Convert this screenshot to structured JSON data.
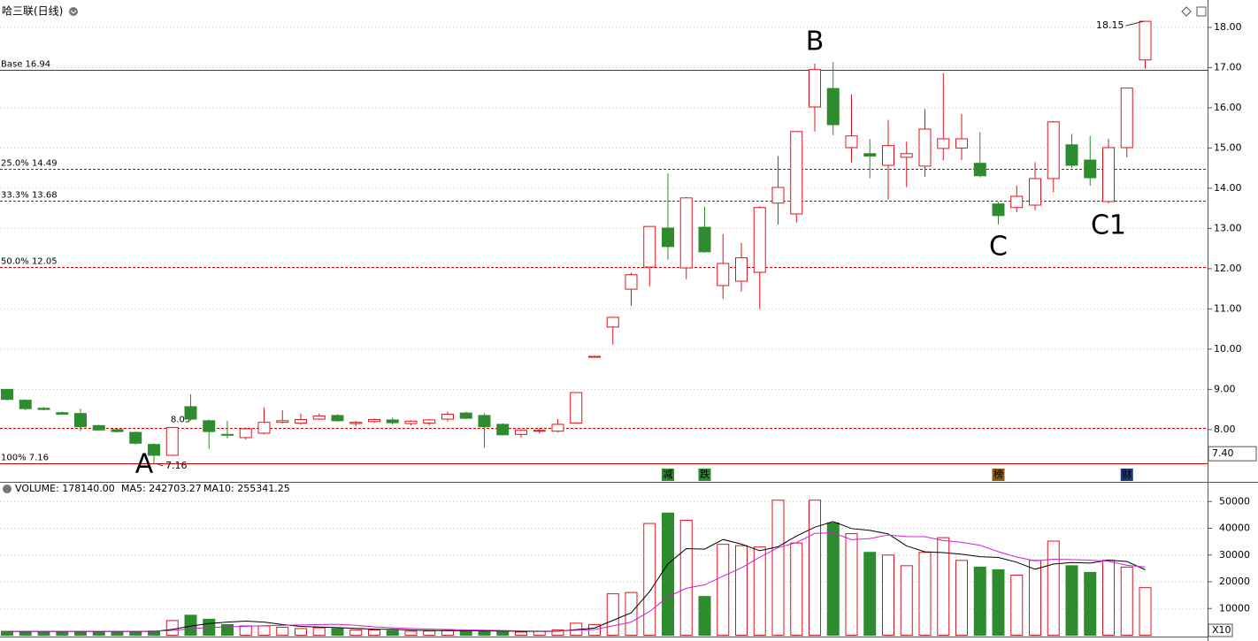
{
  "chart_data": [
    {
      "type": "candlestick",
      "title": "哈三联(日线)",
      "up_color": "#e0141e",
      "down_color": "#2e8b2e",
      "level_color": "#cc0000",
      "grid": true,
      "open": [
        9.0,
        8.73,
        8.53,
        8.42,
        8.4,
        8.1,
        8.0,
        7.93,
        7.63,
        7.36,
        8.57,
        8.22,
        7.88,
        7.8,
        7.91,
        8.18,
        8.16,
        8.26,
        8.35,
        8.15,
        8.2,
        8.24,
        8.15,
        8.16,
        8.26,
        8.41,
        8.35,
        8.13,
        7.88,
        7.96,
        7.96,
        8.16,
        9.82,
        10.55,
        11.49,
        12.04,
        13.01,
        12.02,
        13.03,
        11.58,
        11.69,
        11.91,
        13.63,
        13.36,
        16.02,
        16.48,
        15.01,
        14.86,
        14.57,
        14.77,
        14.55,
        14.99,
        15.0,
        14.62,
        13.61,
        13.52,
        13.58,
        14.24,
        15.08,
        14.7,
        13.67,
        15.01,
        17.19
      ],
      "high": [
        9.0,
        8.75,
        8.56,
        8.45,
        8.52,
        8.12,
        8.02,
        7.95,
        7.66,
        8.07,
        8.88,
        8.25,
        8.22,
        8.05,
        8.55,
        8.48,
        8.4,
        8.4,
        8.38,
        8.22,
        8.27,
        8.3,
        8.23,
        8.26,
        8.45,
        8.45,
        8.4,
        8.16,
        8.0,
        8.03,
        8.26,
        8.92,
        9.82,
        10.79,
        11.9,
        13.05,
        14.37,
        13.78,
        13.54,
        12.86,
        12.64,
        13.56,
        14.8,
        15.41,
        17.1,
        17.14,
        16.33,
        15.22,
        15.7,
        15.16,
        15.97,
        16.86,
        15.85,
        15.4,
        13.66,
        14.07,
        14.65,
        15.67,
        15.35,
        15.3,
        15.23,
        16.49,
        18.15
      ],
      "low": [
        8.72,
        8.48,
        8.48,
        8.37,
        7.96,
        7.97,
        7.93,
        7.62,
        7.16,
        7.34,
        8.22,
        7.52,
        7.78,
        7.75,
        7.88,
        8.15,
        8.12,
        8.24,
        8.2,
        8.08,
        8.17,
        8.12,
        8.1,
        8.1,
        8.2,
        8.26,
        7.54,
        7.85,
        7.8,
        7.9,
        7.93,
        8.16,
        9.82,
        10.11,
        11.08,
        11.56,
        12.22,
        11.74,
        12.4,
        11.25,
        11.43,
        11.0,
        13.1,
        13.15,
        15.41,
        15.32,
        14.64,
        14.25,
        13.72,
        14.03,
        14.29,
        14.7,
        14.7,
        14.27,
        13.1,
        13.4,
        13.45,
        13.9,
        14.51,
        14.06,
        13.62,
        14.77,
        16.97
      ],
      "close": [
        8.75,
        8.52,
        8.5,
        8.38,
        8.07,
        7.99,
        7.95,
        7.66,
        7.36,
        8.05,
        8.26,
        7.95,
        7.86,
        8.02,
        8.18,
        8.22,
        8.25,
        8.34,
        8.22,
        8.18,
        8.25,
        8.17,
        8.21,
        8.24,
        8.38,
        8.28,
        8.07,
        7.87,
        7.98,
        7.98,
        8.13,
        8.92,
        9.82,
        10.79,
        11.85,
        13.05,
        12.55,
        13.76,
        12.42,
        12.13,
        12.27,
        13.52,
        14.02,
        15.41,
        16.95,
        15.58,
        15.3,
        14.8,
        15.06,
        14.86,
        15.47,
        15.23,
        15.23,
        14.31,
        13.32,
        13.8,
        14.24,
        15.65,
        14.57,
        14.26,
        15.01,
        16.49,
        18.15
      ],
      "ylim": [
        6.7,
        18.57
      ],
      "yticks": [
        {
          "value": 8,
          "label": "8.00"
        },
        {
          "value": 9,
          "label": "9.00"
        },
        {
          "value": 10,
          "label": "10.00"
        },
        {
          "value": 11,
          "label": "11.00"
        },
        {
          "value": 12,
          "label": "12.00"
        },
        {
          "value": 13,
          "label": "13.00"
        },
        {
          "value": 14,
          "label": "14.00"
        },
        {
          "value": 15,
          "label": "15.00"
        },
        {
          "value": 16,
          "label": "16.00"
        },
        {
          "value": 17,
          "label": "17.00"
        },
        {
          "value": 18,
          "label": "18.00"
        }
      ],
      "cursor_price": {
        "value": 7.4,
        "label": "7.40"
      },
      "levels": [
        {
          "label": "Base 16.94",
          "value": 16.94,
          "style": "solid"
        },
        {
          "label": "25.0% 14.49",
          "value": 14.49,
          "style": "dashed"
        },
        {
          "label": "33.3% 13.68",
          "value": 13.68,
          "style": "dashed"
        },
        {
          "label": "50.0% 12.05",
          "value": 12.05,
          "style": "dashed"
        },
        {
          "value": 8.05,
          "style": "dashed"
        },
        {
          "label": "100% 7.16",
          "value": 7.16,
          "style": "solid"
        }
      ],
      "extremes": [
        {
          "value": 7.16,
          "index": 8
        },
        {
          "value": 18.15,
          "index": 62
        }
      ],
      "annotations": [
        {
          "text": "A",
          "index": 8,
          "side": "below"
        },
        {
          "text": "B",
          "index": 44,
          "side": "above"
        },
        {
          "text": "C",
          "index": 54,
          "side": "below"
        },
        {
          "text": "C1",
          "index": 60,
          "side": "below"
        }
      ],
      "events": [
        {
          "text": "减",
          "index": 36,
          "color": "#2e8b2e"
        },
        {
          "text": "跌",
          "index": 38,
          "color": "#2e8b2e"
        },
        {
          "text": "榜",
          "index": 54,
          "color": "#8b5a14"
        },
        {
          "text": "财",
          "index": 61,
          "color": "#1a3a7a"
        }
      ]
    },
    {
      "type": "bar",
      "title": "VOLUME: 178140.00",
      "axis_note": "X10",
      "up_color": "#e0141e",
      "down_color": "#2e8b2e",
      "values": [
        1500,
        1200,
        1300,
        1400,
        1300,
        1200,
        1300,
        1300,
        1600,
        5500,
        7500,
        6000,
        4000,
        3500,
        3500,
        3000,
        2500,
        2800,
        2500,
        2000,
        2000,
        1800,
        1500,
        1600,
        1800,
        1700,
        1500,
        1300,
        1200,
        1500,
        2000,
        4500,
        4000,
        15500,
        16000,
        41800,
        45700,
        43000,
        14500,
        34000,
        33500,
        33000,
        50500,
        34500,
        50500,
        42000,
        38000,
        31000,
        30000,
        26000,
        31000,
        36500,
        28000,
        25500,
        24500,
        22500,
        28000,
        35200,
        26000,
        23500,
        28000,
        25500,
        17800
      ],
      "series": [
        {
          "name": "MA5: 242703.27",
          "color": "#000000",
          "values": [
            1400,
            1400,
            1400,
            1400,
            1400,
            1400,
            1400,
            1400,
            1400,
            2200,
            3440,
            4380,
            4920,
            5300,
            4900,
            4000,
            3300,
            3060,
            2860,
            2560,
            2260,
            2220,
            1960,
            1780,
            1740,
            1680,
            1620,
            1580,
            1500,
            1440,
            1500,
            2100,
            2700,
            5540,
            8400,
            16300,
            26700,
            32400,
            32200,
            35800,
            34100,
            31600,
            33100,
            37100,
            40400,
            42500,
            39900,
            39200,
            37900,
            33400,
            31200,
            30900,
            30300,
            29400,
            29100,
            27300,
            24700,
            26600,
            27200,
            27000,
            28100,
            27600,
            24500
          ]
        },
        {
          "name": "MA10: 255341.25",
          "color": "#d020d0",
          "values": [
            1500,
            1500,
            1500,
            1500,
            1500,
            1500,
            1500,
            1500,
            1500,
            1800,
            2420,
            2890,
            3160,
            3350,
            3550,
            3720,
            3840,
            3990,
            4080,
            3730,
            3130,
            2760,
            2510,
            2320,
            2150,
            1970,
            1920,
            1770,
            1640,
            1590,
            1590,
            1860,
            2140,
            3520,
            4920,
            8900,
            14400,
            17550,
            18870,
            22100,
            25200,
            29150,
            32750,
            34650,
            38100,
            38300,
            35750,
            36150,
            37500,
            36900,
            36850,
            35400,
            34750,
            33650,
            31250,
            29250,
            27800,
            28450,
            28300,
            28050,
            27700,
            26150,
            25550
          ]
        }
      ],
      "ylim": [
        0,
        52400
      ],
      "yticks": [
        10000,
        20000,
        30000,
        40000,
        50000
      ]
    }
  ]
}
